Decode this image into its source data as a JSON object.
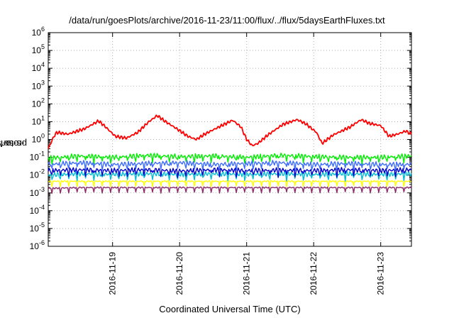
{
  "chart_data": {
    "type": "line",
    "title": "/data/run/goesPlots/archive/2016-11-23/11:00/flux/../flux/5daysEarthFluxes.txt",
    "xlabel": "Coordinated Universal Time (UTC)",
    "ylabel_base": "protons/cm",
    "ylabel_exp": "2",
    "ylabel_rest": "-s-sr-MeV",
    "y_scale": "log",
    "ylim": [
      1e-06,
      1000000
    ],
    "y_ticks": [
      {
        "value": 1e-06,
        "base": "10",
        "exp": "-6"
      },
      {
        "value": 1e-05,
        "base": "10",
        "exp": "-5"
      },
      {
        "value": 0.0001,
        "base": "10",
        "exp": "-4"
      },
      {
        "value": 0.001,
        "base": "10",
        "exp": "-3"
      },
      {
        "value": 0.01,
        "base": "10",
        "exp": "-2"
      },
      {
        "value": 0.1,
        "base": "10",
        "exp": "-1"
      },
      {
        "value": 1,
        "base": "10",
        "exp": "0"
      },
      {
        "value": 10,
        "base": "10",
        "exp": "1"
      },
      {
        "value": 100,
        "base": "10",
        "exp": "2"
      },
      {
        "value": 1000,
        "base": "10",
        "exp": "3"
      },
      {
        "value": 10000,
        "base": "10",
        "exp": "4"
      },
      {
        "value": 100000,
        "base": "10",
        "exp": "5"
      },
      {
        "value": 1000000,
        "base": "10",
        "exp": "6"
      }
    ],
    "xlim": [
      "2016-11-18T00:58",
      "2016-11-23T11:00"
    ],
    "x_ticks": [
      "2016-11-19",
      "2016-11-20",
      "2016-11-21",
      "2016-11-22",
      "2016-11-23"
    ],
    "grid": true,
    "legend": "none",
    "series": [
      {
        "color": "#ff0000",
        "values": [
          [
            "2016-11-18T00:58",
            0.3
          ],
          [
            "2016-11-18T03:00",
            1.5
          ],
          [
            "2016-11-18T04:00",
            2.5
          ],
          [
            "2016-11-18T08:00",
            2.0
          ],
          [
            "2016-11-18T14:00",
            4.0
          ],
          [
            "2016-11-18T19:00",
            11
          ],
          [
            "2016-11-18T21:00",
            6
          ],
          [
            "2016-11-19T01:00",
            1.5
          ],
          [
            "2016-11-19T05:00",
            1.2
          ],
          [
            "2016-11-19T09:00",
            2.5
          ],
          [
            "2016-11-19T13:00",
            10
          ],
          [
            "2016-11-19T16:00",
            22
          ],
          [
            "2016-11-19T19:00",
            10
          ],
          [
            "2016-11-19T23:00",
            4
          ],
          [
            "2016-11-20T03:00",
            1.5
          ],
          [
            "2016-11-20T06:00",
            1.0
          ],
          [
            "2016-11-20T09:00",
            2.0
          ],
          [
            "2016-11-20T14:00",
            5
          ],
          [
            "2016-11-20T19:00",
            12
          ],
          [
            "2016-11-20T22:00",
            5
          ],
          [
            "2016-11-21T00:00",
            1.0
          ],
          [
            "2016-11-21T02:00",
            0.45
          ],
          [
            "2016-11-21T04:00",
            0.6
          ],
          [
            "2016-11-21T08:00",
            2.0
          ],
          [
            "2016-11-21T13:00",
            7
          ],
          [
            "2016-11-21T18:00",
            13
          ],
          [
            "2016-11-21T21:00",
            8
          ],
          [
            "2016-11-22T01:00",
            2.5
          ],
          [
            "2016-11-22T03:00",
            0.6
          ],
          [
            "2016-11-22T07:00",
            1.8
          ],
          [
            "2016-11-22T13:00",
            5
          ],
          [
            "2016-11-22T17:00",
            13
          ],
          [
            "2016-11-22T20:00",
            8
          ],
          [
            "2016-11-23T00:00",
            6
          ],
          [
            "2016-11-23T03:00",
            1.5
          ],
          [
            "2016-11-23T06:00",
            2.0
          ],
          [
            "2016-11-23T09:00",
            3.0
          ],
          [
            "2016-11-23T11:00",
            2.0
          ]
        ]
      },
      {
        "color": "#00ee00",
        "values": [
          [
            "2016-11-18T00:58",
            0.09
          ],
          [
            "2016-11-18T12:00",
            0.12
          ],
          [
            "2016-11-19T00:00",
            0.1
          ],
          [
            "2016-11-19T12:00",
            0.13
          ],
          [
            "2016-11-20T00:00",
            0.11
          ],
          [
            "2016-11-20T12:00",
            0.12
          ],
          [
            "2016-11-21T00:00",
            0.1
          ],
          [
            "2016-11-21T12:00",
            0.13
          ],
          [
            "2016-11-22T00:00",
            0.11
          ],
          [
            "2016-11-22T12:00",
            0.1
          ],
          [
            "2016-11-23T00:00",
            0.1
          ],
          [
            "2016-11-23T11:00",
            0.12
          ]
        ]
      },
      {
        "color": "#3b6bff",
        "values": [
          [
            "2016-11-18T00:58",
            0.04
          ],
          [
            "2016-11-18T12:00",
            0.05
          ],
          [
            "2016-11-19T00:00",
            0.04
          ],
          [
            "2016-11-19T12:00",
            0.045
          ],
          [
            "2016-11-20T00:00",
            0.05
          ],
          [
            "2016-11-20T12:00",
            0.04
          ],
          [
            "2016-11-21T00:00",
            0.045
          ],
          [
            "2016-11-21T12:00",
            0.05
          ],
          [
            "2016-11-22T00:00",
            0.04
          ],
          [
            "2016-11-22T12:00",
            0.045
          ],
          [
            "2016-11-23T00:00",
            0.04
          ],
          [
            "2016-11-23T11:00",
            0.04
          ]
        ]
      },
      {
        "color": "#00bcd4",
        "values": [
          [
            "2016-11-18T00:58",
            0.01
          ],
          [
            "2016-11-18T12:00",
            0.012
          ],
          [
            "2016-11-19T00:00",
            0.011
          ],
          [
            "2016-11-19T12:00",
            0.012
          ],
          [
            "2016-11-20T00:00",
            0.011
          ],
          [
            "2016-11-20T12:00",
            0.012
          ],
          [
            "2016-11-21T00:00",
            0.011
          ],
          [
            "2016-11-21T12:00",
            0.012
          ],
          [
            "2016-11-22T00:00",
            0.011
          ],
          [
            "2016-11-22T12:00",
            0.012
          ],
          [
            "2016-11-23T00:00",
            0.011
          ],
          [
            "2016-11-23T11:00",
            0.012
          ]
        ]
      },
      {
        "color": "#0000cc",
        "values": [
          [
            "2016-11-18T00:58",
            0.018
          ],
          [
            "2016-11-18T12:00",
            0.02
          ],
          [
            "2016-11-19T00:00",
            0.018
          ],
          [
            "2016-11-19T12:00",
            0.02
          ],
          [
            "2016-11-20T00:00",
            0.017
          ],
          [
            "2016-11-20T12:00",
            0.02
          ],
          [
            "2016-11-21T00:00",
            0.018
          ],
          [
            "2016-11-21T12:00",
            0.019
          ],
          [
            "2016-11-22T00:00",
            0.018
          ],
          [
            "2016-11-22T12:00",
            0.02
          ],
          [
            "2016-11-23T00:00",
            0.018
          ],
          [
            "2016-11-23T11:00",
            0.02
          ]
        ]
      },
      {
        "color": "#ffff00",
        "values": [
          [
            "2016-11-18T00:58",
            0.0045
          ],
          [
            "2016-11-18T12:00",
            0.0045
          ],
          [
            "2016-11-19T00:00",
            0.0045
          ],
          [
            "2016-11-19T12:00",
            0.0045
          ],
          [
            "2016-11-20T00:00",
            0.0045
          ],
          [
            "2016-11-20T12:00",
            0.0045
          ],
          [
            "2016-11-21T00:00",
            0.0045
          ],
          [
            "2016-11-21T12:00",
            0.0045
          ],
          [
            "2016-11-22T00:00",
            0.0045
          ],
          [
            "2016-11-22T12:00",
            0.0045
          ],
          [
            "2016-11-23T00:00",
            0.0045
          ],
          [
            "2016-11-23T11:00",
            0.0045
          ]
        ]
      },
      {
        "color": "#8b2a6b",
        "values": [
          [
            "2016-11-18T00:58",
            0.0018
          ],
          [
            "2016-11-18T12:00",
            0.002
          ],
          [
            "2016-11-19T00:00",
            0.002
          ],
          [
            "2016-11-19T12:00",
            0.002
          ],
          [
            "2016-11-20T00:00",
            0.002
          ],
          [
            "2016-11-20T12:00",
            0.002
          ],
          [
            "2016-11-21T00:00",
            0.002
          ],
          [
            "2016-11-21T12:00",
            0.002
          ],
          [
            "2016-11-22T00:00",
            0.002
          ],
          [
            "2016-11-22T12:00",
            0.002
          ],
          [
            "2016-11-23T00:00",
            0.002
          ],
          [
            "2016-11-23T11:00",
            0.002
          ]
        ]
      }
    ]
  }
}
